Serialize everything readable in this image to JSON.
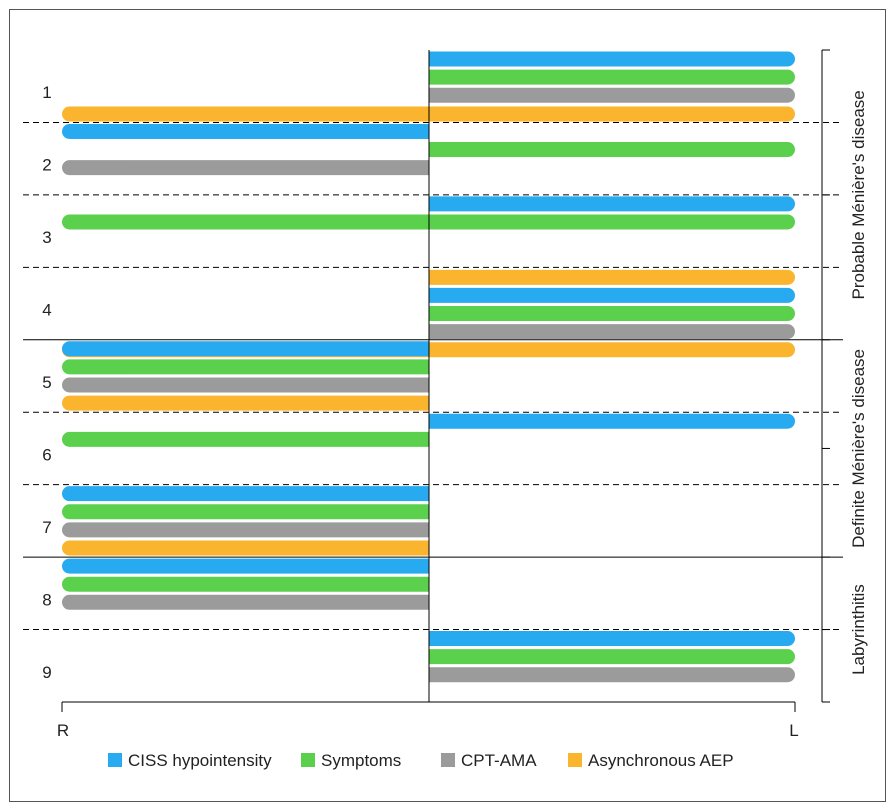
{
  "chart_data": {
    "type": "bar",
    "subtype": "horizontal diverging range bars (R side / L side)",
    "patients": [
      "1",
      "2",
      "3",
      "4",
      "5",
      "6",
      "7",
      "8",
      "9"
    ],
    "x_ticks": {
      "left": "R",
      "right": "L"
    },
    "series": [
      {
        "name": "CISS hypointensity",
        "color": "#27aaf0"
      },
      {
        "name": "Symptoms",
        "color": "#5ad04c"
      },
      {
        "name": "CPT-AMA",
        "color": "#9b9b9b"
      },
      {
        "name": "Asynchronous AEP",
        "color": "#fab42e"
      }
    ],
    "bars": [
      {
        "patient": "1",
        "side": "L",
        "series": "CISS hypointensity"
      },
      {
        "patient": "1",
        "side": "L",
        "series": "Symptoms"
      },
      {
        "patient": "1",
        "side": "L",
        "series": "CPT-AMA"
      },
      {
        "patient": "1",
        "side": "R",
        "series": "Asynchronous AEP"
      },
      {
        "patient": "1",
        "side": "L",
        "series": "Asynchronous AEP"
      },
      {
        "patient": "2",
        "side": "R",
        "series": "CISS hypointensity"
      },
      {
        "patient": "2",
        "side": "L",
        "series": "Symptoms"
      },
      {
        "patient": "2",
        "side": "R",
        "series": "CPT-AMA"
      },
      {
        "patient": "3",
        "side": "L",
        "series": "CISS hypointensity"
      },
      {
        "patient": "3",
        "side": "R",
        "series": "Symptoms"
      },
      {
        "patient": "3",
        "side": "L",
        "series": "Symptoms"
      },
      {
        "patient": "4",
        "side": "L",
        "series": "Asynchronous AEP"
      },
      {
        "patient": "4",
        "side": "L",
        "series": "CISS hypointensity"
      },
      {
        "patient": "4",
        "side": "L",
        "series": "Symptoms"
      },
      {
        "patient": "4",
        "side": "L",
        "series": "CPT-AMA"
      },
      {
        "patient": "4",
        "side": "R",
        "series": "Asynchronous AEP"
      },
      {
        "patient": "4",
        "side": "L",
        "series": "Asynchronous AEP"
      },
      {
        "patient": "5",
        "side": "R",
        "series": "CISS hypointensity"
      },
      {
        "patient": "5",
        "side": "R",
        "series": "Symptoms"
      },
      {
        "patient": "5",
        "side": "R",
        "series": "CPT-AMA"
      },
      {
        "patient": "5",
        "side": "R",
        "series": "Asynchronous AEP"
      },
      {
        "patient": "6",
        "side": "L",
        "series": "CISS hypointensity"
      },
      {
        "patient": "6",
        "side": "R",
        "series": "Symptoms"
      },
      {
        "patient": "7",
        "side": "R",
        "series": "CISS hypointensity"
      },
      {
        "patient": "7",
        "side": "R",
        "series": "Symptoms"
      },
      {
        "patient": "7",
        "side": "R",
        "series": "CPT-AMA"
      },
      {
        "patient": "7",
        "side": "R",
        "series": "Asynchronous AEP"
      },
      {
        "patient": "8",
        "side": "R",
        "series": "CISS hypointensity"
      },
      {
        "patient": "8",
        "side": "R",
        "series": "Symptoms"
      },
      {
        "patient": "8",
        "side": "R",
        "series": "CPT-AMA"
      },
      {
        "patient": "9",
        "side": "L",
        "series": "CISS hypointensity"
      },
      {
        "patient": "9",
        "side": "L",
        "series": "Symptoms"
      },
      {
        "patient": "9",
        "side": "L",
        "series": "CPT-AMA"
      }
    ],
    "groups": [
      {
        "label": "Probable Ménière's disease",
        "patients": [
          "1",
          "2",
          "3",
          "4"
        ]
      },
      {
        "label": "Definite Ménière's disease",
        "patients": [
          "5",
          "6",
          "7"
        ]
      },
      {
        "label": "Labyrinthitis",
        "patients": [
          "8",
          "9"
        ]
      }
    ],
    "legend_position": "bottom",
    "grid": false
  }
}
